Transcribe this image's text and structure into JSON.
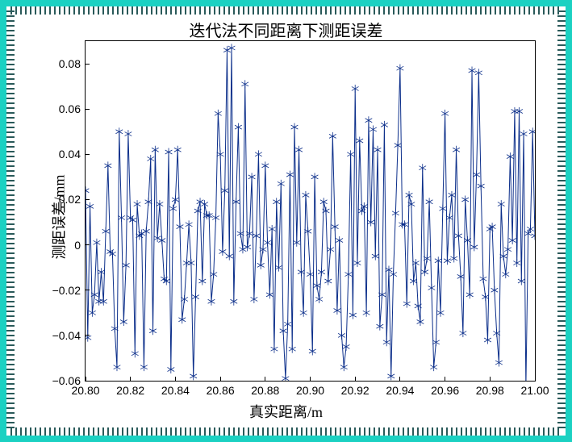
{
  "chart": {
    "type": "line",
    "title": "迭代法不同距离下测距误差",
    "title_fontsize": 20,
    "xlabel": "真实距离/m",
    "ylabel": "测距误差/mm",
    "label_fontsize": 18,
    "xlim": [
      20.8,
      21.0
    ],
    "ylim": [
      -0.06,
      0.09
    ],
    "xticks": [
      20.8,
      20.82,
      20.84,
      20.86,
      20.88,
      20.9,
      20.92,
      20.94,
      20.96,
      20.98,
      21.0
    ],
    "yticks": [
      -0.06,
      -0.04,
      -0.02,
      0,
      0.02,
      0.04,
      0.06,
      0.08
    ],
    "line_color": "#0b2e8a",
    "marker": "*",
    "marker_size": 5,
    "line_width": 1,
    "background_color": "#ffffff",
    "tick_fontsize": 14,
    "x": [
      20.8,
      20.801,
      20.802,
      20.803,
      20.804,
      20.805,
      20.806,
      20.807,
      20.808,
      20.809,
      20.81,
      20.811,
      20.812,
      20.813,
      20.814,
      20.815,
      20.816,
      20.817,
      20.818,
      20.819,
      20.82,
      20.821,
      20.822,
      20.823,
      20.824,
      20.825,
      20.826,
      20.827,
      20.828,
      20.829,
      20.83,
      20.831,
      20.832,
      20.833,
      20.834,
      20.835,
      20.836,
      20.837,
      20.838,
      20.839,
      20.84,
      20.841,
      20.842,
      20.843,
      20.844,
      20.845,
      20.846,
      20.847,
      20.848,
      20.849,
      20.85,
      20.851,
      20.852,
      20.853,
      20.854,
      20.855,
      20.856,
      20.857,
      20.858,
      20.859,
      20.86,
      20.861,
      20.862,
      20.863,
      20.864,
      20.865,
      20.866,
      20.867,
      20.868,
      20.869,
      20.87,
      20.871,
      20.872,
      20.873,
      20.874,
      20.875,
      20.876,
      20.877,
      20.878,
      20.879,
      20.88,
      20.881,
      20.882,
      20.883,
      20.884,
      20.885,
      20.886,
      20.887,
      20.888,
      20.889,
      20.89,
      20.891,
      20.892,
      20.893,
      20.894,
      20.895,
      20.896,
      20.897,
      20.898,
      20.899,
      20.9,
      20.901,
      20.902,
      20.903,
      20.904,
      20.905,
      20.906,
      20.907,
      20.908,
      20.909,
      20.91,
      20.911,
      20.912,
      20.913,
      20.914,
      20.915,
      20.916,
      20.917,
      20.918,
      20.919,
      20.92,
      20.921,
      20.922,
      20.923,
      20.924,
      20.925,
      20.926,
      20.927,
      20.928,
      20.929,
      20.93,
      20.931,
      20.932,
      20.933,
      20.934,
      20.935,
      20.936,
      20.937,
      20.938,
      20.939,
      20.94,
      20.941,
      20.942,
      20.943,
      20.944,
      20.945,
      20.946,
      20.947,
      20.948,
      20.949,
      20.95,
      20.951,
      20.952,
      20.953,
      20.954,
      20.955,
      20.956,
      20.957,
      20.958,
      20.959,
      20.96,
      20.961,
      20.962,
      20.963,
      20.964,
      20.965,
      20.966,
      20.967,
      20.968,
      20.969,
      20.97,
      20.971,
      20.972,
      20.973,
      20.974,
      20.975,
      20.976,
      20.977,
      20.978,
      20.979,
      20.98,
      20.981,
      20.982,
      20.983,
      20.984,
      20.985,
      20.986,
      20.987,
      20.988,
      20.989,
      20.99,
      20.991,
      20.992,
      20.993,
      20.994,
      20.995,
      20.996,
      20.997,
      20.998,
      20.999,
      21.0
    ],
    "y": [
      0.024,
      -0.041,
      0.017,
      -0.03,
      -0.022,
      0.001,
      -0.025,
      -0.012,
      -0.025,
      0.006,
      0.035,
      -0.003,
      -0.004,
      -0.037,
      -0.054,
      0.05,
      0.012,
      -0.034,
      -0.009,
      0.049,
      0.012,
      0.011,
      -0.048,
      0.018,
      0.004,
      0.005,
      -0.054,
      0.006,
      0.019,
      0.038,
      -0.038,
      0.042,
      0.003,
      0.018,
      0.002,
      -0.015,
      -0.016,
      0.041,
      -0.055,
      0.016,
      0.02,
      0.042,
      0.008,
      -0.033,
      -0.024,
      -0.008,
      0.009,
      -0.008,
      -0.058,
      -0.023,
      0.015,
      0.019,
      -0.016,
      0.018,
      0.013,
      0.013,
      -0.025,
      -0.013,
      0.012,
      0.058,
      0.04,
      -0.003,
      0.024,
      0.086,
      -0.005,
      0.087,
      -0.025,
      0.019,
      0.052,
      0.005,
      -0.002,
      0.071,
      -0.001,
      0.005,
      0.03,
      -0.024,
      0.004,
      0.04,
      -0.009,
      -0.002,
      0.035,
      0.001,
      -0.022,
      0.007,
      -0.046,
      0.019,
      -0.01,
      0.027,
      -0.038,
      -0.059,
      -0.035,
      0.031,
      -0.046,
      0.052,
      0.001,
      0.042,
      -0.012,
      -0.03,
      0.022,
      0.006,
      -0.013,
      -0.047,
      0.03,
      -0.018,
      -0.024,
      -0.012,
      0.019,
      0.015,
      -0.016,
      -0.002,
      0.048,
      0.008,
      -0.029,
      0.002,
      -0.04,
      -0.054,
      -0.045,
      -0.013,
      0.04,
      -0.031,
      0.069,
      -0.008,
      0.046,
      0.015,
      0.017,
      -0.03,
      0.055,
      0.01,
      0.051,
      -0.005,
      0.042,
      -0.036,
      -0.022,
      0.053,
      -0.043,
      -0.011,
      -0.058,
      -0.013,
      0.014,
      0.044,
      0.078,
      0.009,
      0.009,
      -0.026,
      0.022,
      0.018,
      -0.016,
      -0.008,
      -0.027,
      -0.034,
      0.034,
      -0.012,
      -0.006,
      0.019,
      -0.019,
      -0.054,
      -0.043,
      -0.007,
      -0.03,
      0.016,
      0.058,
      -0.007,
      0.012,
      0.022,
      -0.006,
      0.042,
      0.004,
      -0.014,
      -0.039,
      0.02,
      0.002,
      -0.022,
      0.077,
      -0.001,
      0.031,
      0.076,
      0.026,
      -0.015,
      -0.023,
      -0.042,
      0.007,
      0.008,
      -0.02,
      -0.039,
      -0.052,
      0.018,
      -0.005,
      -0.013,
      -0.002,
      0.039,
      0.002,
      0.059,
      -0.008,
      0.059,
      -0.016,
      0.049,
      -0.063,
      0.005,
      0.007,
      0.05,
      0.004
    ]
  },
  "border": {
    "outer_color": "#1bd1c2",
    "dash_color": "#2a5a5a",
    "outer_width": 8,
    "dash_band_width": 10
  }
}
